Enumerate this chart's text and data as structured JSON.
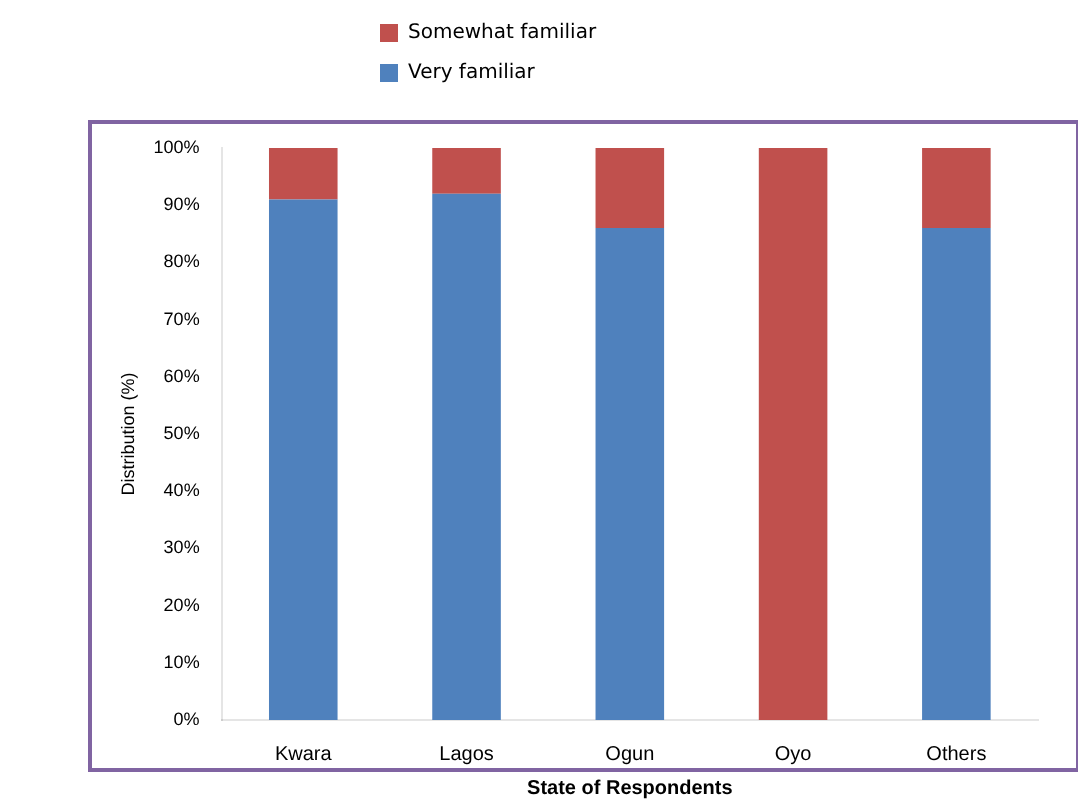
{
  "chart_data": {
    "type": "bar",
    "stacked": true,
    "xlabel": "State of Respondents",
    "ylabel": "Distribution (%)",
    "categories": [
      "Kwara",
      "Lagos",
      "Ogun",
      "Oyo",
      "Others"
    ],
    "series": [
      {
        "name": "Very familiar",
        "color": "#4f81bd",
        "values": [
          91,
          92,
          86,
          0,
          86
        ]
      },
      {
        "name": "Somewhat familiar",
        "color": "#c0504d",
        "values": [
          9,
          8,
          14,
          100,
          14
        ]
      }
    ],
    "ylim": [
      0,
      100
    ],
    "yticks": [
      {
        "value": 0,
        "label": "0%"
      },
      {
        "value": 10,
        "label": "10%"
      },
      {
        "value": 20,
        "label": "20%"
      },
      {
        "value": 30,
        "label": "30%"
      },
      {
        "value": 40,
        "label": "40%"
      },
      {
        "value": 50,
        "label": "50%"
      },
      {
        "value": 60,
        "label": "60%"
      },
      {
        "value": 70,
        "label": "70%"
      },
      {
        "value": 80,
        "label": "80%"
      },
      {
        "value": 90,
        "label": "90%"
      },
      {
        "value": 100,
        "label": "100%"
      }
    ],
    "grid": false,
    "legend": "top"
  }
}
